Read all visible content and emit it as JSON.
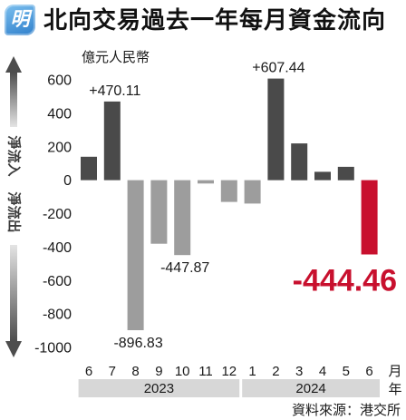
{
  "logo": {
    "text": "明",
    "color": "#2f7fcb"
  },
  "side_arrow": {
    "upper_label": "淨流入",
    "lower_label": "淨流出"
  },
  "chart_data": {
    "type": "bar",
    "title": "北向交易過去一年每月資金流向",
    "ylabel": "億元人民幣",
    "x_unit_label": "月",
    "year_unit_label": "年",
    "categories": [
      "6",
      "7",
      "8",
      "9",
      "10",
      "11",
      "12",
      "1",
      "2",
      "3",
      "4",
      "5",
      "6"
    ],
    "category_years": [
      "2023",
      "2023",
      "2023",
      "2023",
      "2023",
      "2023",
      "2023",
      "2024",
      "2024",
      "2024",
      "2024",
      "2024",
      "2024"
    ],
    "values": [
      140,
      470.11,
      -896.83,
      -380,
      -447.87,
      -20,
      -130,
      -140,
      607.44,
      220,
      50,
      80,
      -444.46
    ],
    "value_labels": [
      null,
      "+470.11",
      "-896.83",
      null,
      "-447.87",
      null,
      null,
      null,
      "+607.44",
      null,
      null,
      null,
      "-444.46"
    ],
    "bar_colors": [
      "#4a4a4a",
      "#4a4a4a",
      "#9d9d9d",
      "#9d9d9d",
      "#9d9d9d",
      "#9d9d9d",
      "#9d9d9d",
      "#9d9d9d",
      "#4a4a4a",
      "#4a4a4a",
      "#4a4a4a",
      "#4a4a4a",
      "#c8102e"
    ],
    "highlight_color": "#c8102e",
    "ylim": [
      -1000,
      600
    ],
    "yticks": [
      600,
      400,
      200,
      0,
      -200,
      -400,
      -600,
      -800,
      -1000
    ],
    "grid": false
  },
  "source": "資料來源：港交所"
}
